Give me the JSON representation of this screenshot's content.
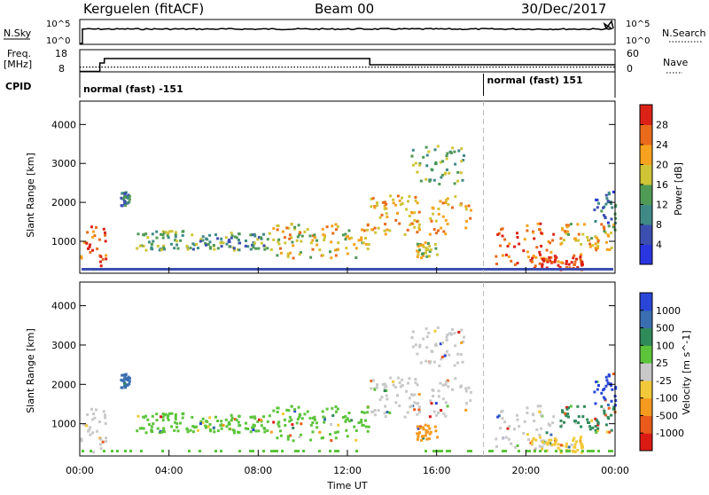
{
  "header": {
    "radar": "Kerguelen (fitACF)",
    "beam": "Beam 00",
    "date": "30/Dec/2017"
  },
  "nsky_panel": {
    "left_label": "N.Sky",
    "left_ticks": [
      "10^5",
      "10^0"
    ],
    "right_ticks": [
      "10^5",
      "10^0"
    ],
    "right_label": "N.Search"
  },
  "freq_panel": {
    "left_label_line1": "Freq.",
    "left_label_line2": "[MHz]",
    "left_ticks": [
      "18",
      "8"
    ],
    "right_ticks": [
      "60",
      "0"
    ],
    "right_label": "Nave"
  },
  "cpid_panel": {
    "label": "CPID",
    "mode_1": "normal (fast) -151",
    "mode_2": "normal (fast) 151"
  },
  "power_panel": {
    "ylabel": "Slant Range [km]",
    "yticks": [
      1000,
      2000,
      3000,
      4000
    ],
    "colorbar_label": "Power [dB]",
    "colorbar_ticks": [
      4,
      8,
      12,
      16,
      20,
      24,
      28
    ],
    "colors": [
      "#2a36e0",
      "#3c4fb0",
      "#3f8a86",
      "#4f9a55",
      "#cfc436",
      "#f7a21e",
      "#e86a1a",
      "#dc2216"
    ]
  },
  "velocity_panel": {
    "ylabel": "Slant Range [km]",
    "yticks": [
      1000,
      2000,
      3000,
      4000
    ],
    "colorbar_label": "Velocity [m s^-1]",
    "colorbar_ticks": [
      "1000",
      "500",
      "100",
      "25",
      "-25",
      "-100",
      "-500",
      "-1000"
    ],
    "colors": [
      "#2a46d8",
      "#3a6eb0",
      "#2f8a5a",
      "#5cc43a",
      "#c8c8c8",
      "#f2c93a",
      "#f59a1e",
      "#ea5a1a",
      "#dc1a14"
    ]
  },
  "xaxis": {
    "label": "Time UT",
    "ticks": [
      "00:00",
      "04:00",
      "08:00",
      "12:00",
      "16:00",
      "20:00",
      "00:00"
    ]
  },
  "chart_data": {
    "type": "heatmap",
    "x_range_hours": [
      0,
      24
    ],
    "y_range_km": [
      180,
      4600
    ],
    "mode_change_hour": 18.1,
    "freq_steps": [
      {
        "t": 0,
        "mhz": 8.2
      },
      {
        "t": 0.9,
        "mhz": 12.0
      },
      {
        "t": 1.1,
        "mhz": 14.0
      },
      {
        "t": 13.0,
        "mhz": 11.2
      },
      {
        "t": 24,
        "mhz": 11.2
      }
    ],
    "nave_level": 13,
    "nsky_level": "10^4",
    "scatter_regions": [
      {
        "t0": 0.0,
        "t1": 1.3,
        "r0": 300,
        "r1": 1500,
        "power": 26,
        "vel": "-25"
      },
      {
        "t0": 1.8,
        "t1": 2.2,
        "r0": 1900,
        "r1": 2300,
        "power": 8,
        "vel": "500"
      },
      {
        "t0": 2.5,
        "t1": 5.0,
        "r0": 800,
        "r1": 1300,
        "power": 14,
        "vel": "25"
      },
      {
        "t0": 5.0,
        "t1": 8.5,
        "r0": 800,
        "r1": 1250,
        "power": 12,
        "vel": "25"
      },
      {
        "t0": 8.5,
        "t1": 13.0,
        "r0": 600,
        "r1": 1500,
        "power": 20,
        "vel": "25"
      },
      {
        "t0": 13.0,
        "t1": 17.5,
        "r0": 1200,
        "r1": 2200,
        "power": 22,
        "vel": "-25"
      },
      {
        "t0": 14.8,
        "t1": 17.2,
        "r0": 2500,
        "r1": 3500,
        "power": 14,
        "vel": "-25"
      },
      {
        "t0": 15.0,
        "t1": 16.0,
        "r0": 600,
        "r1": 1000,
        "power": 18,
        "vel": "-500"
      },
      {
        "t0": 18.6,
        "t1": 21.2,
        "r0": 400,
        "r1": 1500,
        "power": 26,
        "vel": "-25"
      },
      {
        "t0": 20.0,
        "t1": 22.5,
        "r0": 300,
        "r1": 700,
        "power": 28,
        "vel": "-100"
      },
      {
        "t0": 21.5,
        "t1": 24.0,
        "r0": 800,
        "r1": 1500,
        "power": 20,
        "vel": "100"
      },
      {
        "t0": 23.0,
        "t1": 24.0,
        "r0": 1500,
        "r1": 2300,
        "power": 8,
        "vel": "1000"
      }
    ]
  }
}
